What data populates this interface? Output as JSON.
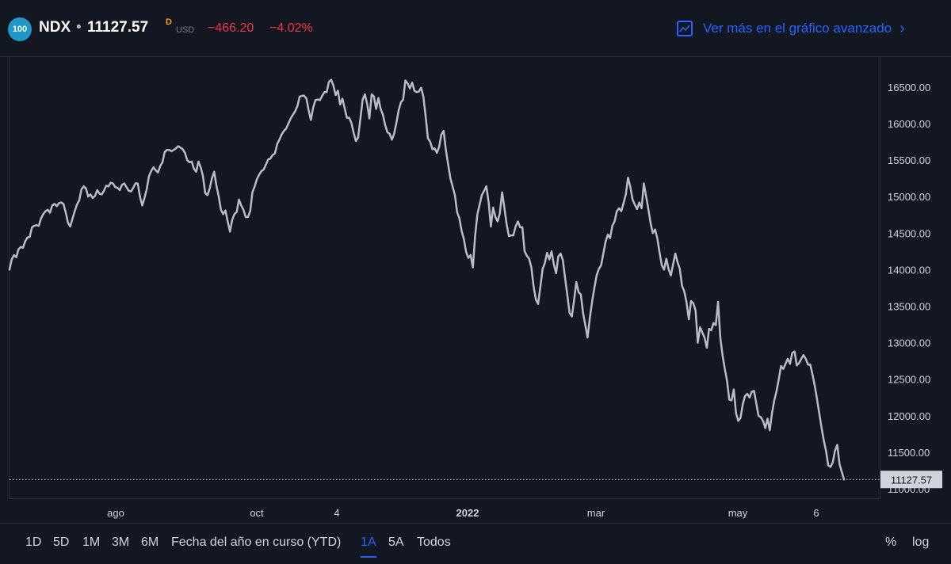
{
  "header": {
    "logo_text": "100",
    "symbol": "NDX",
    "separator": "•",
    "price": "11127.57",
    "flag": "D",
    "currency": "USD",
    "change": "−466.20",
    "change_pct": "−4.02%",
    "advanced_link": "Ver más en el gráfico avanzado",
    "advanced_icon": "line-chart-icon",
    "advanced_chevron": "›"
  },
  "colors": {
    "background": "#131722",
    "line": "#b8bcc6",
    "accent": "#2962ff",
    "down": "#f23645",
    "flag": "#f7a21b",
    "logo": "#2196c9"
  },
  "toolbar": {
    "ranges": [
      "1D",
      "5D",
      "1M",
      "3M",
      "6M",
      "Fecha del año en curso (YTD)",
      "1A",
      "5A",
      "Todos"
    ],
    "active_range": "1A",
    "percent_label": "%",
    "log_label": "log"
  },
  "chart_data": {
    "type": "line",
    "x_tick_labels": [
      "ago",
      "oct",
      "4",
      "2022",
      "mar",
      "may",
      "6"
    ],
    "y_tick_labels": [
      "11000.00",
      "11500.00",
      "12000.00",
      "12500.00",
      "13000.00",
      "13500.00",
      "14000.00",
      "14500.00",
      "15000.00",
      "15500.00",
      "16000.00",
      "16500.00"
    ],
    "ylim": [
      10870,
      16900
    ],
    "last_value": 11127.57,
    "last_label": "11127.57",
    "series": [
      {
        "values": [
          14000,
          14140,
          14200,
          14170,
          14280,
          14310,
          14300,
          14390,
          14440,
          14450,
          14580,
          14600,
          14610,
          14600,
          14700,
          14760,
          14800,
          14820,
          14780,
          14880,
          14900,
          14870,
          14910,
          14920,
          14900,
          14780,
          14640,
          14590,
          14700,
          14800,
          14890,
          14950,
          15100,
          15140,
          15110,
          15000,
          15030,
          14980,
          15010,
          15090,
          15040,
          15030,
          15080,
          15150,
          15140,
          15190,
          15180,
          15130,
          15120,
          15090,
          15160,
          15180,
          15130,
          15080,
          15070,
          15120,
          15180,
          15180,
          15000,
          14880,
          14980,
          15100,
          15280,
          15350,
          15400,
          15360,
          15330,
          15420,
          15470,
          15610,
          15640,
          15640,
          15620,
          15640,
          15660,
          15690,
          15670,
          15650,
          15600,
          15500,
          15470,
          15480,
          15380,
          15340,
          15480,
          15400,
          15280,
          15050,
          15020,
          15110,
          15250,
          15340,
          15150,
          15000,
          14820,
          14760,
          14810,
          14660,
          14520,
          14680,
          14760,
          14790,
          14960,
          14880,
          14820,
          14720,
          14720,
          14800,
          15060,
          15140,
          15240,
          15300,
          15350,
          15370,
          15440,
          15510,
          15520,
          15570,
          15590,
          15720,
          15780,
          15850,
          15900,
          15930,
          16000,
          16070,
          16120,
          16170,
          16240,
          16370,
          16380,
          16380,
          16340,
          16180,
          16050,
          16220,
          16320,
          16330,
          16320,
          16380,
          16430,
          16430,
          16570,
          16600,
          16520,
          16390,
          16450,
          16260,
          16340,
          16210,
          16080,
          16080,
          16010,
          15870,
          15760,
          15810,
          16070,
          16330,
          16400,
          16270,
          16070,
          16400,
          16370,
          16200,
          16350,
          16200,
          16120,
          15980,
          15880,
          15860,
          15780,
          15860,
          16010,
          16180,
          16290,
          16330,
          16590,
          16550,
          16480,
          16560,
          16450,
          16430,
          16440,
          16490,
          16370,
          16100,
          15800,
          15750,
          15650,
          15660,
          15600,
          15680,
          15850,
          15900,
          15640,
          15440,
          15250,
          15140,
          15020,
          14790,
          14700,
          14530,
          14420,
          14240,
          14160,
          14200,
          14030,
          14460,
          14760,
          14890,
          15020,
          15080,
          15140,
          14920,
          14590,
          14850,
          14720,
          14660,
          14770,
          15060,
          14850,
          14620,
          14460,
          14470,
          14470,
          14590,
          14660,
          14580,
          14580,
          14250,
          14190,
          14150,
          14030,
          13770,
          13590,
          13530,
          13760,
          14010,
          14090,
          14230,
          14140,
          14250,
          14070,
          13950,
          14180,
          14220,
          14130,
          13880,
          13650,
          13410,
          13360,
          13580,
          13830,
          13690,
          13660,
          13400,
          13240,
          13070,
          13340,
          13560,
          13750,
          13920,
          14010,
          14060,
          14220,
          14380,
          14480,
          14430,
          14600,
          14660,
          14800,
          14840,
          14800,
          14910,
          15030,
          15260,
          15130,
          14960,
          14890,
          14830,
          14920,
          14840,
          15180,
          15010,
          14830,
          14640,
          14500,
          14550,
          14430,
          14230,
          14060,
          14000,
          14150,
          14010,
          13920,
          14070,
          14220,
          14100,
          14010,
          13780,
          13700,
          13550,
          13320,
          13570,
          13540,
          13440,
          13000,
          13210,
          13140,
          13070,
          12930,
          13190,
          13170,
          13270,
          13240,
          13560,
          13070,
          12830,
          12640,
          12480,
          12220,
          12210,
          12360,
          12030,
          11930,
          11970,
          12160,
          12270,
          12300,
          12250,
          12330,
          12340,
          12170,
          12000,
          11980,
          11930,
          11830,
          11960,
          11800,
          12040,
          12210,
          12340,
          12500,
          12680,
          12640,
          12710,
          12780,
          12710,
          12860,
          12880,
          12690,
          12720,
          12780,
          12830,
          12780,
          12700,
          12700,
          12560,
          12410,
          12230,
          12030,
          11840,
          11660,
          11520,
          11320,
          11300,
          11360,
          11520,
          11600,
          11340,
          11230,
          11127.57
        ]
      }
    ]
  }
}
